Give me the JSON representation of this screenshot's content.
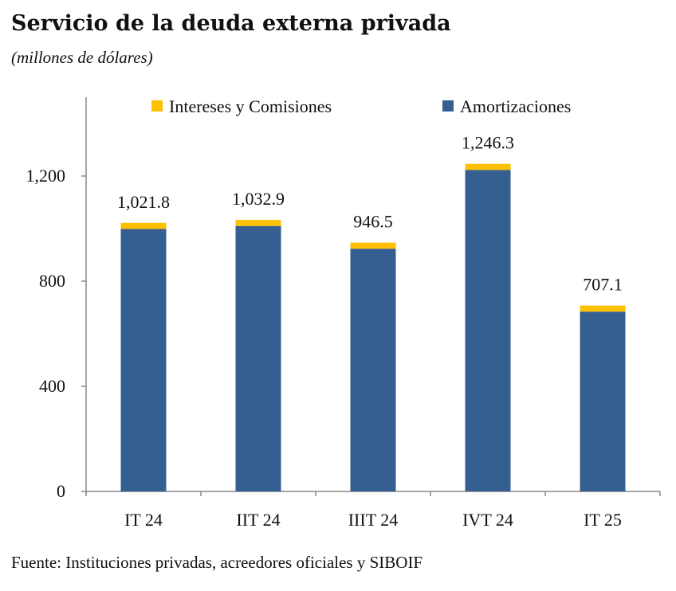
{
  "title": "Servicio de la deuda externa privada",
  "subtitle": "(millones de dólares)",
  "source": "Fuente: Instituciones privadas, acreedores oficiales y SIBOIF",
  "colors": {
    "interes": "#FFC000",
    "amortizacion": "#365F91",
    "axis": "#888888"
  },
  "chart_data": {
    "type": "bar",
    "stacked": true,
    "categories": [
      "IT 24",
      "IIT 24",
      "IIIT 24",
      "IVT 24",
      "IT 25"
    ],
    "series": [
      {
        "name": "Amortizaciones",
        "values": [
          998.8,
          1009.9,
          923.5,
          1223.3,
          684.1
        ],
        "color": "#365F91"
      },
      {
        "name": "Intereses y Comisiones",
        "values": [
          23.0,
          23.0,
          23.0,
          23.0,
          23.0
        ],
        "color": "#FFC000"
      }
    ],
    "totals": [
      1021.8,
      1032.9,
      946.5,
      1246.3,
      707.1
    ],
    "total_labels": [
      "1,021.8",
      "1,032.9",
      "946.5",
      "1,246.3",
      "707.1"
    ],
    "yticks": [
      0,
      400,
      800,
      1200
    ],
    "ytick_labels": [
      "0",
      "400",
      "800",
      "1,200"
    ],
    "ylim": [
      0,
      1500
    ],
    "legend": {
      "placement": "top",
      "order": [
        "Intereses y Comisiones",
        "Amortizaciones"
      ]
    },
    "grid": false
  }
}
